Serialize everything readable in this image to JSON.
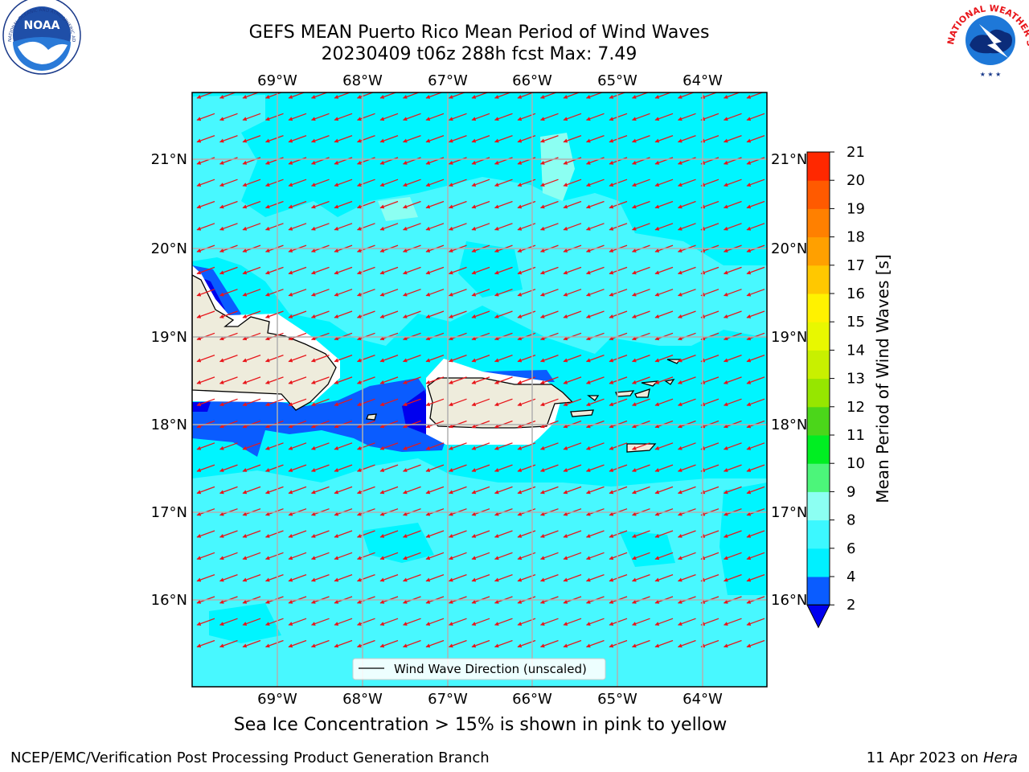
{
  "header": {
    "title_line1": "GEFS MEAN Puerto Rico Mean Period of Wind Waves",
    "title_line2": "20230409 t06z 288h fcst   Max: 7.49"
  },
  "logos": {
    "left": "NOAA",
    "left_ring": "NATIONAL OCEANIC AND ATMOSPHERIC ADMINISTRATION · U.S. DEPARTMENT OF COMMERCE",
    "right_ring": "NATIONAL WEATHER SERVICE"
  },
  "map": {
    "lon_labels": [
      "69°W",
      "68°W",
      "67°W",
      "66°W",
      "65°W",
      "64°W"
    ],
    "lat_labels": [
      "21°N",
      "20°N",
      "19°N",
      "18°N",
      "17°N",
      "16°N"
    ],
    "legend_label": "Wind Wave Direction (unscaled)",
    "arrow_color": "#e8161b",
    "ocean_color": "#00f5ff",
    "land_color": "#eeecdc"
  },
  "colorbar": {
    "label": "Mean Period of Wind Waves [s]",
    "ticks": [
      "2",
      "4",
      "6",
      "8",
      "9",
      "10",
      "11",
      "12",
      "13",
      "14",
      "15",
      "16",
      "17",
      "18",
      "19",
      "20",
      "21"
    ],
    "colors": [
      "#0a5cff",
      "#00f0ff",
      "#3cf8ff",
      "#8cfff2",
      "#4cf57a",
      "#00ee22",
      "#4bd61a",
      "#96e600",
      "#c8f000",
      "#e8f800",
      "#fff200",
      "#ffc800",
      "#ffa000",
      "#ff8000",
      "#ff5a00",
      "#ff2800",
      "#ff0000"
    ],
    "extend_color": "#0000ee"
  },
  "subtitle": "Sea Ice Concentration > 15% is shown in pink to yellow",
  "footer": {
    "left": "NCEP/EMC/Verification Post Processing Product Generation Branch",
    "right_date": "11 Apr 2023 on ",
    "right_host": "Hera"
  }
}
